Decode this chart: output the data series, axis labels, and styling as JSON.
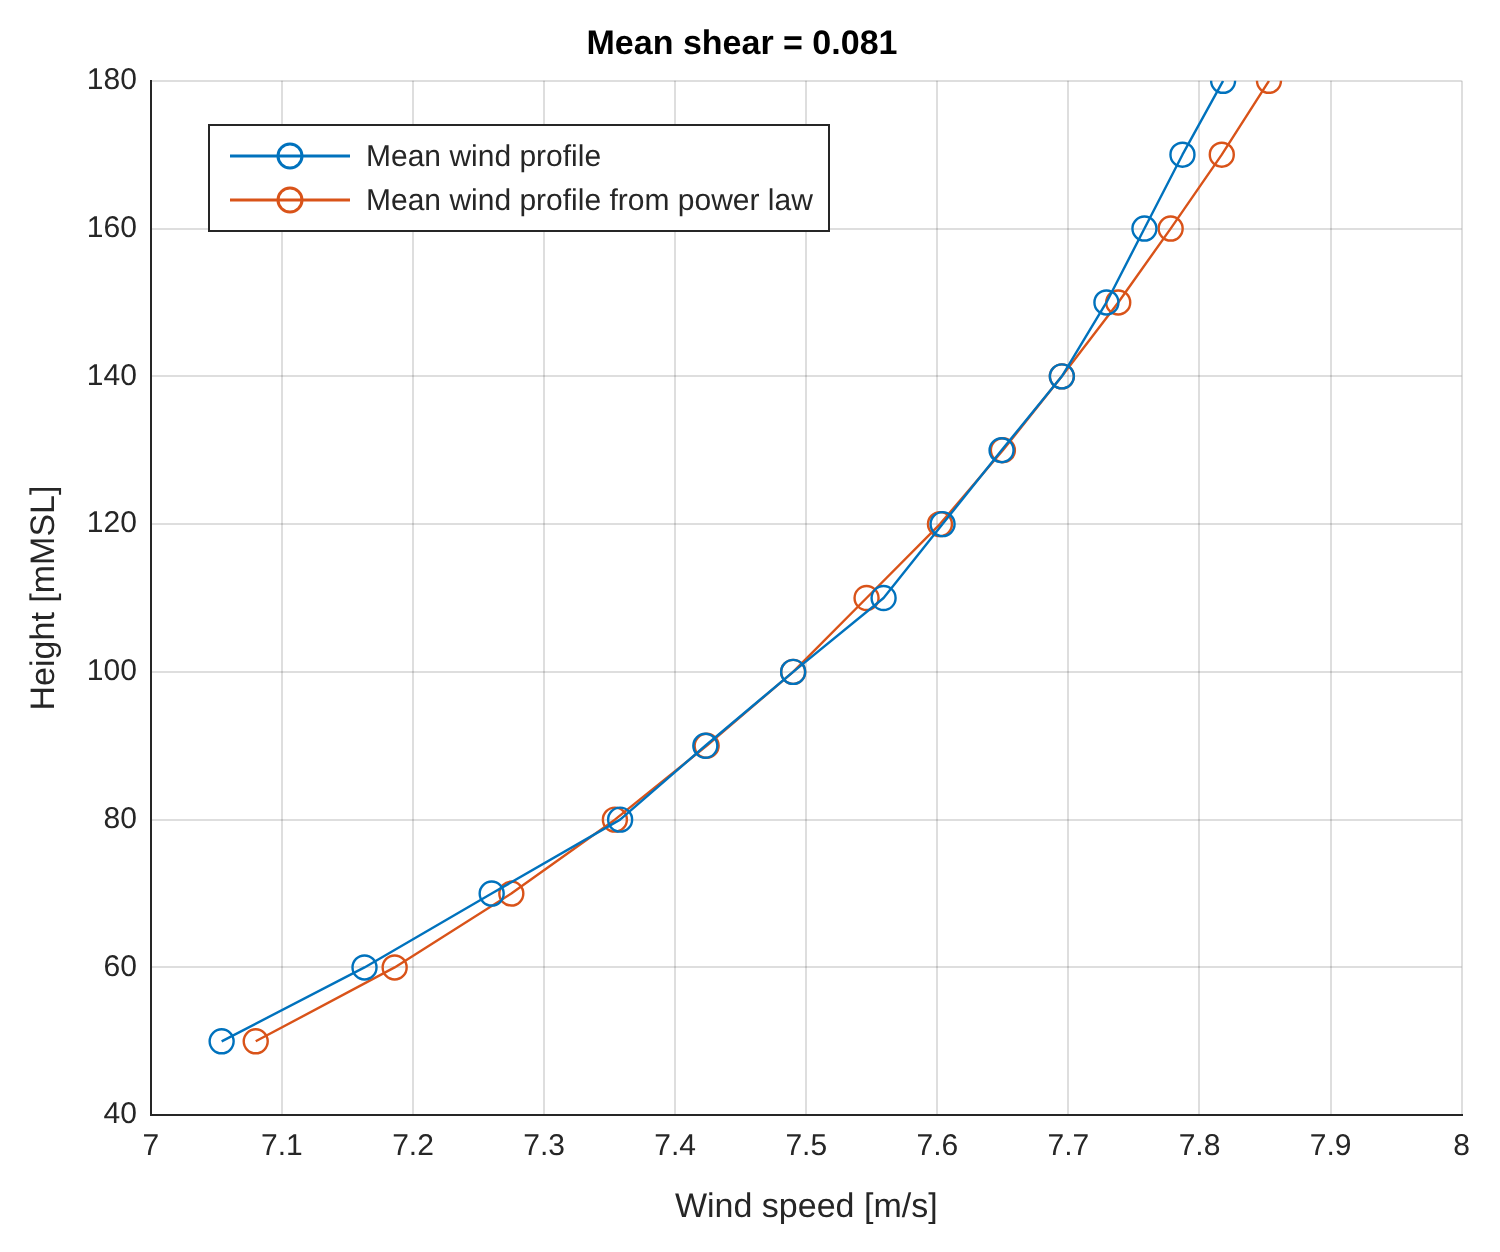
{
  "chart_data": {
    "type": "line",
    "title": "Mean shear = 0.081",
    "xlabel": "Wind speed [m/s]",
    "ylabel": "Height [mMSL]",
    "xlim": [
      7,
      8
    ],
    "xticks": [
      7,
      7.1,
      7.2,
      7.3,
      7.4,
      7.5,
      7.6,
      7.7,
      7.8,
      7.9,
      8
    ],
    "ylim": [
      40,
      180
    ],
    "yticks": [
      40,
      60,
      80,
      100,
      120,
      140,
      160,
      180
    ],
    "grid": true,
    "legend": "top left",
    "marker": "circle",
    "line_style": "solid",
    "series": [
      {
        "name": "Mean wind profile",
        "color": "#0072bd",
        "x": [
          7.054,
          7.163,
          7.26,
          7.358,
          7.423,
          7.49,
          7.559,
          7.604,
          7.649,
          7.695,
          7.729,
          7.758,
          7.787,
          7.818
        ],
        "values": [
          50,
          60,
          70,
          80,
          90,
          100,
          110,
          120,
          130,
          140,
          150,
          160,
          170,
          180
        ]
      },
      {
        "name": "Mean wind profile from power law",
        "color": "#d95319",
        "x": [
          7.08,
          7.186,
          7.275,
          7.354,
          7.424,
          7.49,
          7.546,
          7.602,
          7.65,
          7.695,
          7.738,
          7.778,
          7.817,
          7.853
        ],
        "values": [
          50,
          60,
          70,
          80,
          90,
          100,
          110,
          120,
          130,
          140,
          150,
          160,
          170,
          180
        ]
      }
    ]
  }
}
